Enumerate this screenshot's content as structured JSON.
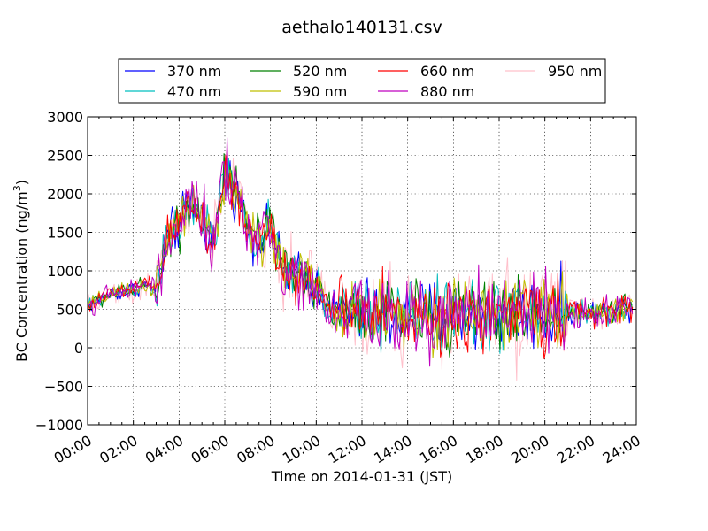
{
  "chart_data": {
    "type": "line",
    "title": "aethalo140131.csv",
    "xlabel": "Time on 2014-01-31 (JST)",
    "ylabel": "BC Concentration (ng/m³)",
    "ylabel_main": "BC Concentration (ng/m",
    "ylabel_sup": "3",
    "ylabel_end": ")",
    "xlim": [
      "00:00",
      "24:00"
    ],
    "ylim": [
      -1000,
      3000
    ],
    "x_ticks": [
      "00:00",
      "02:00",
      "04:00",
      "06:00",
      "08:00",
      "10:00",
      "12:00",
      "14:00",
      "16:00",
      "18:00",
      "20:00",
      "22:00",
      "24:00"
    ],
    "y_ticks": [
      "−1000",
      "−500",
      "0",
      "500",
      "1000",
      "1500",
      "2000",
      "2500",
      "3000"
    ],
    "grid": true,
    "legend_position": "top, outside plot",
    "series": [
      {
        "name": "370 nm",
        "color": "#0000ff"
      },
      {
        "name": "470 nm",
        "color": "#00bfbf"
      },
      {
        "name": "520 nm",
        "color": "#008000"
      },
      {
        "name": "590 nm",
        "color": "#bfbf00"
      },
      {
        "name": "660 nm",
        "color": "#ff0000"
      },
      {
        "name": "880 nm",
        "color": "#bf00bf"
      },
      {
        "name": "950 nm",
        "color": "#ffc0cb"
      }
    ],
    "base_profile": {
      "x": [
        "00:00",
        "00:30",
        "01:00",
        "01:30",
        "02:00",
        "02:30",
        "03:00",
        "03:30",
        "04:00",
        "04:30",
        "05:00",
        "05:30",
        "06:00",
        "06:30",
        "07:00",
        "07:30",
        "08:00",
        "08:30",
        "09:00",
        "09:30",
        "10:00",
        "10:30",
        "11:00",
        "12:00",
        "13:00",
        "14:00",
        "15:00",
        "16:00",
        "17:00",
        "18:00",
        "19:00",
        "20:00",
        "21:00",
        "22:00",
        "23:00",
        "24:00"
      ],
      "y": [
        550,
        620,
        700,
        720,
        760,
        820,
        760,
        1400,
        1600,
        1900,
        1700,
        1300,
        2300,
        2000,
        1550,
        1400,
        1550,
        1000,
        950,
        900,
        820,
        550,
        450,
        450,
        430,
        430,
        430,
        440,
        430,
        420,
        440,
        440,
        470,
        450,
        470,
        580
      ]
    }
  }
}
